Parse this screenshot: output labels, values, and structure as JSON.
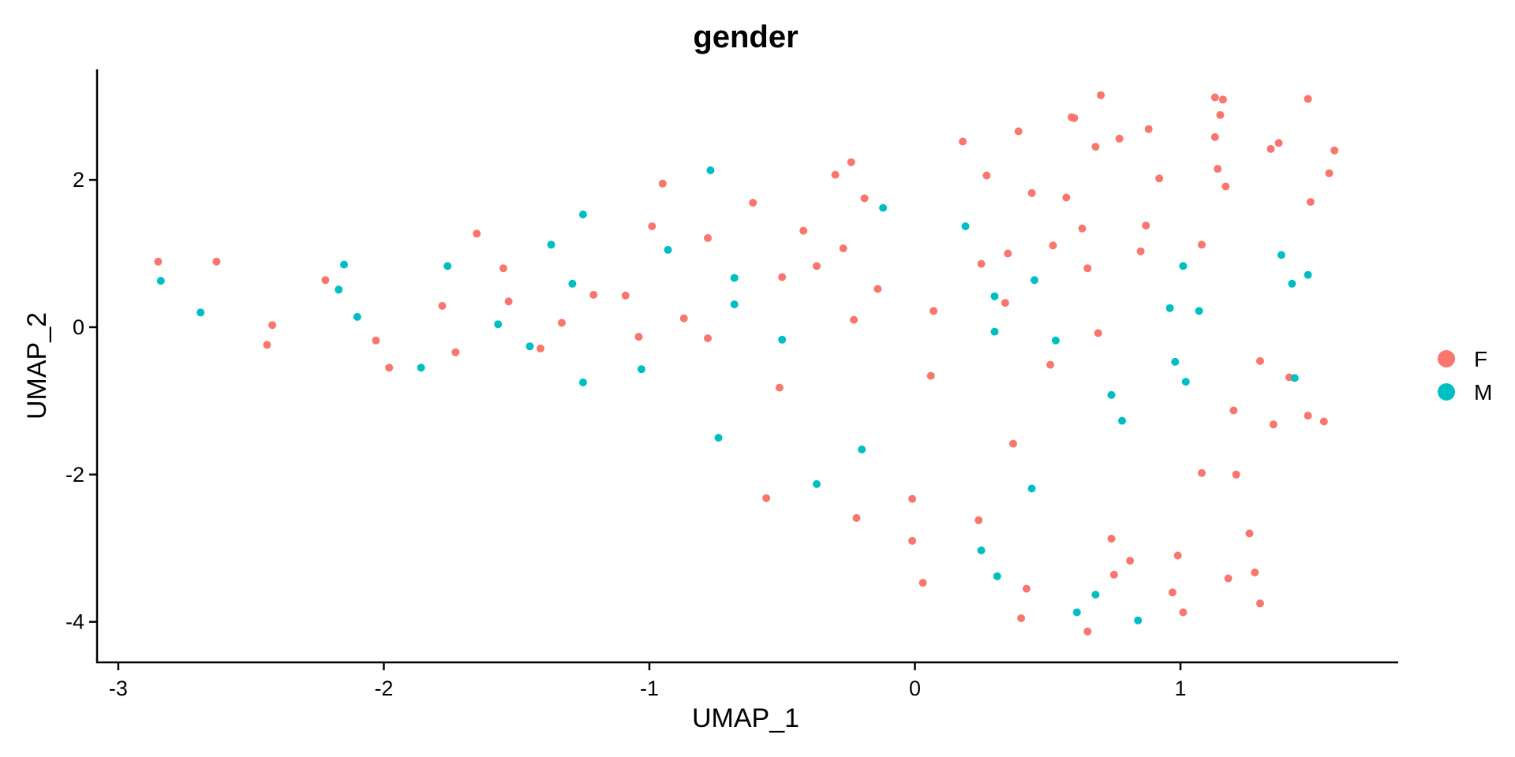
{
  "chart_data": {
    "type": "scatter",
    "title": "gender",
    "xlabel": "UMAP_1",
    "ylabel": "UMAP_2",
    "xlim": [
      -3.08,
      1.82
    ],
    "ylim": [
      -4.55,
      3.5
    ],
    "xticks": [
      -3,
      -2,
      -1,
      0,
      1
    ],
    "yticks": [
      -4,
      -2,
      0,
      2
    ],
    "grid": false,
    "legend_position": "right",
    "colors": {
      "F": "#F8766D",
      "M": "#00BFC4"
    },
    "series": [
      {
        "name": "F",
        "color": "#F8766D",
        "points": [
          [
            -2.85,
            0.89
          ],
          [
            -2.63,
            0.89
          ],
          [
            -2.42,
            0.03
          ],
          [
            -2.44,
            -0.24
          ],
          [
            -2.22,
            0.64
          ],
          [
            -2.03,
            -0.18
          ],
          [
            -1.98,
            -0.55
          ],
          [
            -1.78,
            0.29
          ],
          [
            -1.73,
            -0.34
          ],
          [
            -1.65,
            1.27
          ],
          [
            -1.55,
            0.8
          ],
          [
            -1.53,
            0.35
          ],
          [
            -1.41,
            -0.29
          ],
          [
            -1.33,
            0.06
          ],
          [
            -1.21,
            0.44
          ],
          [
            -1.09,
            0.43
          ],
          [
            -1.04,
            -0.13
          ],
          [
            -0.99,
            1.37
          ],
          [
            -0.95,
            1.95
          ],
          [
            -0.87,
            0.12
          ],
          [
            -0.78,
            1.21
          ],
          [
            -0.78,
            -0.15
          ],
          [
            -0.61,
            1.69
          ],
          [
            -0.56,
            -2.32
          ],
          [
            -0.5,
            0.68
          ],
          [
            -0.51,
            -0.82
          ],
          [
            -0.42,
            1.31
          ],
          [
            -0.37,
            0.83
          ],
          [
            -0.3,
            2.07
          ],
          [
            -0.27,
            1.07
          ],
          [
            -0.24,
            2.24
          ],
          [
            -0.23,
            0.1
          ],
          [
            -0.22,
            -2.59
          ],
          [
            -0.19,
            1.75
          ],
          [
            -0.14,
            0.52
          ],
          [
            -0.01,
            -2.33
          ],
          [
            -0.01,
            -2.9
          ],
          [
            0.03,
            -3.47
          ],
          [
            0.06,
            -0.66
          ],
          [
            0.07,
            0.22
          ],
          [
            0.18,
            2.52
          ],
          [
            0.24,
            -2.62
          ],
          [
            0.25,
            0.86
          ],
          [
            0.27,
            2.06
          ],
          [
            0.34,
            0.33
          ],
          [
            0.35,
            1.0
          ],
          [
            0.37,
            -1.58
          ],
          [
            0.39,
            2.66
          ],
          [
            0.4,
            -3.95
          ],
          [
            0.42,
            -3.55
          ],
          [
            0.44,
            1.82
          ],
          [
            0.51,
            -0.51
          ],
          [
            0.52,
            1.11
          ],
          [
            0.57,
            1.76
          ],
          [
            0.59,
            2.85
          ],
          [
            0.6,
            2.84
          ],
          [
            0.63,
            1.34
          ],
          [
            0.65,
            0.8
          ],
          [
            0.65,
            -4.13
          ],
          [
            0.68,
            2.45
          ],
          [
            0.69,
            -0.08
          ],
          [
            0.7,
            3.15
          ],
          [
            0.74,
            -2.87
          ],
          [
            0.75,
            -3.36
          ],
          [
            0.77,
            2.56
          ],
          [
            0.81,
            -3.17
          ],
          [
            0.85,
            1.03
          ],
          [
            0.87,
            1.38
          ],
          [
            0.88,
            2.69
          ],
          [
            0.92,
            2.02
          ],
          [
            0.97,
            -3.6
          ],
          [
            0.99,
            -3.1
          ],
          [
            1.01,
            -3.87
          ],
          [
            1.08,
            1.12
          ],
          [
            1.08,
            -1.98
          ],
          [
            1.13,
            2.58
          ],
          [
            1.13,
            3.12
          ],
          [
            1.14,
            2.15
          ],
          [
            1.15,
            2.88
          ],
          [
            1.16,
            3.09
          ],
          [
            1.17,
            1.91
          ],
          [
            1.18,
            -3.41
          ],
          [
            1.2,
            -1.13
          ],
          [
            1.21,
            -2.0
          ],
          [
            1.26,
            -2.8
          ],
          [
            1.28,
            -3.33
          ],
          [
            1.3,
            -3.75
          ],
          [
            1.3,
            -0.46
          ],
          [
            1.34,
            2.42
          ],
          [
            1.35,
            -1.32
          ],
          [
            1.37,
            2.5
          ],
          [
            1.41,
            -0.68
          ],
          [
            1.48,
            3.1
          ],
          [
            1.48,
            -1.2
          ],
          [
            1.49,
            1.7
          ],
          [
            1.54,
            -1.28
          ],
          [
            1.56,
            2.09
          ],
          [
            1.58,
            2.4
          ]
        ]
      },
      {
        "name": "M",
        "color": "#00BFC4",
        "points": [
          [
            -2.84,
            0.63
          ],
          [
            -2.69,
            0.2
          ],
          [
            -2.17,
            0.51
          ],
          [
            -2.15,
            0.85
          ],
          [
            -2.1,
            0.14
          ],
          [
            -1.86,
            -0.55
          ],
          [
            -1.76,
            0.83
          ],
          [
            -1.57,
            0.04
          ],
          [
            -1.45,
            -0.26
          ],
          [
            -1.37,
            1.12
          ],
          [
            -1.29,
            0.59
          ],
          [
            -1.25,
            1.53
          ],
          [
            -1.25,
            -0.75
          ],
          [
            -1.03,
            -0.57
          ],
          [
            -0.93,
            1.05
          ],
          [
            -0.77,
            2.13
          ],
          [
            -0.74,
            -1.5
          ],
          [
            -0.68,
            0.67
          ],
          [
            -0.68,
            0.31
          ],
          [
            -0.5,
            -0.17
          ],
          [
            -0.37,
            -2.13
          ],
          [
            -0.2,
            -1.66
          ],
          [
            -0.12,
            1.62
          ],
          [
            0.19,
            1.37
          ],
          [
            0.25,
            -3.03
          ],
          [
            0.3,
            0.42
          ],
          [
            0.3,
            -0.06
          ],
          [
            0.31,
            -3.38
          ],
          [
            0.44,
            -2.19
          ],
          [
            0.45,
            0.64
          ],
          [
            0.53,
            -0.18
          ],
          [
            0.61,
            -3.87
          ],
          [
            0.68,
            -3.63
          ],
          [
            0.74,
            -0.92
          ],
          [
            0.78,
            -1.27
          ],
          [
            0.84,
            -3.98
          ],
          [
            0.96,
            0.26
          ],
          [
            0.98,
            -0.47
          ],
          [
            1.01,
            0.83
          ],
          [
            1.02,
            -0.74
          ],
          [
            1.07,
            0.22
          ],
          [
            1.38,
            0.98
          ],
          [
            1.42,
            0.59
          ],
          [
            1.43,
            -0.69
          ],
          [
            1.48,
            0.71
          ]
        ]
      }
    ]
  }
}
